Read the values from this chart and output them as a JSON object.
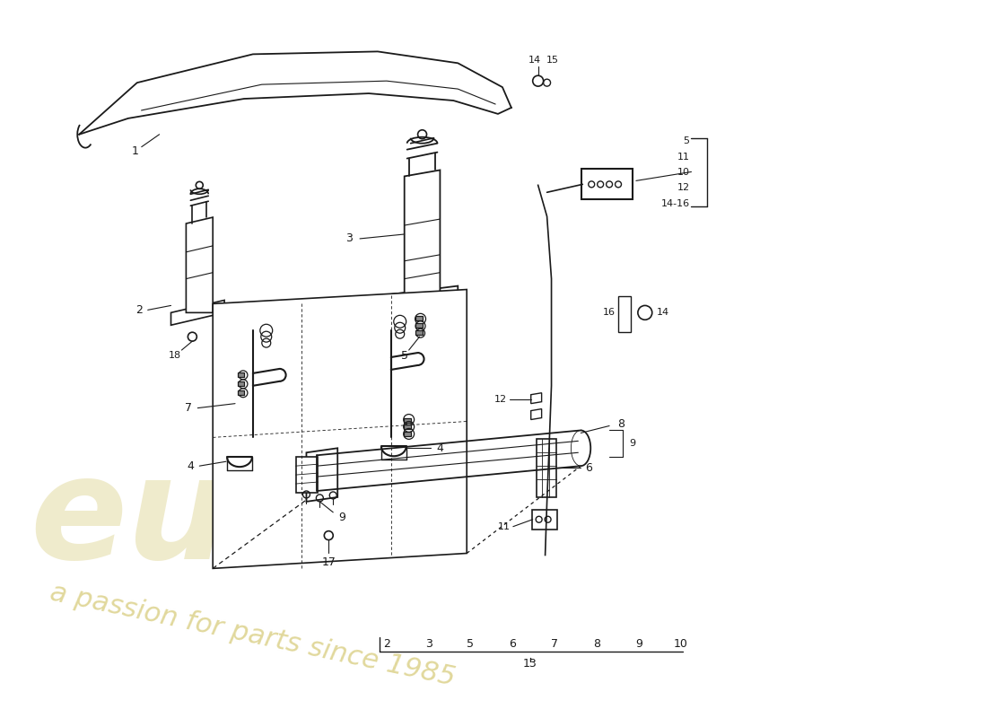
{
  "bg_color": "#ffffff",
  "line_color": "#1a1a1a",
  "wm_color1": "#c8b84a",
  "wm_color2": "#c8b84a",
  "wm_alpha": 0.55,
  "figsize": [
    11.0,
    8.0
  ],
  "dpi": 100
}
